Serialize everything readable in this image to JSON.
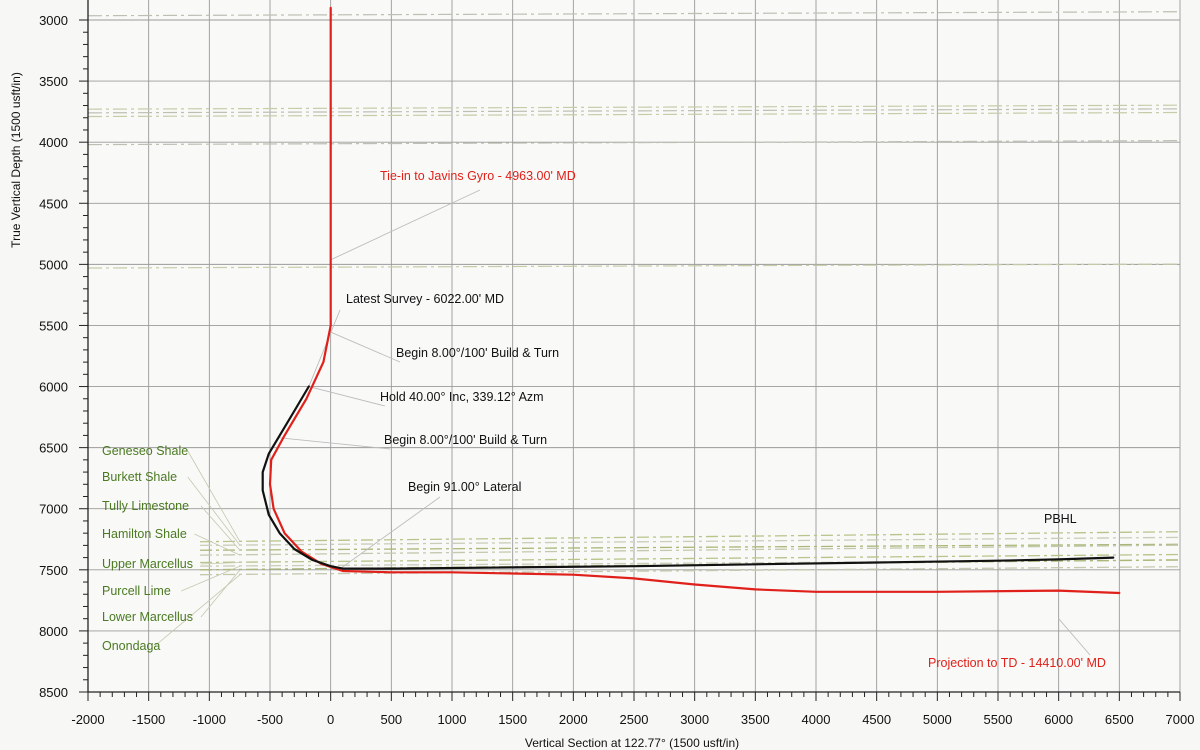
{
  "chart_data": {
    "type": "line",
    "xlabel": "Vertical Section at 122.77° (1500 usft/in)",
    "ylabel": "True Vertical Depth (1500 usft/in)",
    "xlim": [
      -2000,
      7000
    ],
    "ylim": [
      8500,
      2900
    ],
    "y_inverted": true,
    "x_ticks": [
      -2000,
      -1500,
      -1000,
      -500,
      0,
      500,
      1000,
      1500,
      2000,
      2500,
      3000,
      3500,
      4000,
      4500,
      5000,
      5500,
      6000,
      6500,
      7000
    ],
    "y_ticks": [
      3000,
      3500,
      4000,
      4500,
      5000,
      5500,
      6000,
      6500,
      7000,
      7500,
      8000,
      8500
    ],
    "grid": true,
    "series": [
      {
        "name": "",
        "color": "#e0201a",
        "x": [
          0,
          0,
          0,
          -60,
          -200,
          -380,
          -490,
          -500,
          -470,
          -380,
          -240,
          -80,
          100,
          500,
          1000,
          1500,
          2000,
          2500,
          3000,
          3500,
          4000,
          5000,
          6000,
          6500
        ],
        "y": [
          2900,
          4963,
          5500,
          5800,
          6100,
          6400,
          6600,
          6800,
          7000,
          7200,
          7350,
          7450,
          7510,
          7520,
          7520,
          7530,
          7540,
          7570,
          7620,
          7660,
          7680,
          7680,
          7670,
          7690
        ]
      },
      {
        "name": "",
        "color": "#111111",
        "x": [
          -180,
          -300,
          -420,
          -510,
          -560,
          -560,
          -510,
          -420,
          -300,
          -150,
          0,
          100,
          500,
          1500,
          2500,
          3500,
          4500,
          5500,
          6000,
          6450
        ],
        "y": [
          6000,
          6200,
          6400,
          6550,
          6700,
          6850,
          7050,
          7200,
          7330,
          7420,
          7470,
          7490,
          7490,
          7480,
          7470,
          7455,
          7440,
          7425,
          7415,
          7400
        ]
      }
    ],
    "formations": [
      {
        "name": "Geneseo Shale",
        "depth": 7270
      },
      {
        "name": "Burkett Shale",
        "depth": 7300
      },
      {
        "name": "Tully Limestone",
        "depth": 7340
      },
      {
        "name": "Hamilton Shale",
        "depth": 7380
      },
      {
        "name": "Upper Marcellus",
        "depth": 7440
      },
      {
        "name": "Purcell Lime",
        "depth": 7470
      },
      {
        "name": "Lower Marcellus",
        "depth": 7500
      },
      {
        "name": "Onondaga",
        "depth": 7540
      }
    ],
    "upper_markers": [
      2965,
      3730,
      3760,
      3790,
      4020,
      5030
    ],
    "annotations": [
      {
        "text": "Tie-in to Javins Gyro - 4963.00' MD",
        "color": "#e0201a",
        "point": [
          0,
          4963
        ]
      },
      {
        "text": "Latest Survey - 6022.00' MD",
        "color": "#111111",
        "point": [
          -180,
          6000
        ]
      },
      {
        "text": "Begin 8.00°/100' Build & Turn",
        "color": "#111111",
        "point": [
          -10,
          5550
        ]
      },
      {
        "text": "Hold 40.00° Inc, 339.12° Azm",
        "color": "#111111",
        "point": [
          -180,
          6000
        ]
      },
      {
        "text": "Begin 8.00°/100' Build & Turn",
        "color": "#111111",
        "point": [
          -420,
          6420
        ]
      },
      {
        "text": "Begin 91.00° Lateral",
        "color": "#111111",
        "point": [
          80,
          7490
        ]
      },
      {
        "text": "PBHL",
        "color": "#111111",
        "point": [
          6450,
          7400
        ]
      },
      {
        "text": "Projection to TD - 14410.00' MD",
        "color": "#e0201a",
        "point": [
          6000,
          7900
        ]
      }
    ]
  }
}
